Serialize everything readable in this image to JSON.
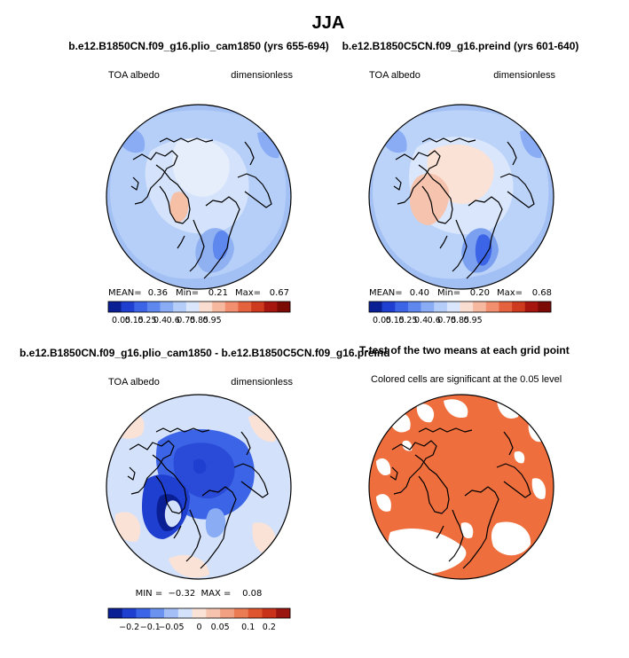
{
  "chart_data": {
    "figure_title": "JJA",
    "panels": [
      {
        "type": "map",
        "title": "b.e12.B1850CN.f09_g16.plio_cam1850 (yrs 655-694)",
        "left_label": "TOA albedo",
        "right_label": "dimensionless",
        "stats": {
          "mean_label": "MEAN=",
          "mean": "0.36",
          "min_label": "Min=",
          "min": "0.21",
          "max_label": "Max=",
          "max": "0.67"
        },
        "colorbar_ticks": [
          "0.05",
          "0.15",
          "0.25",
          "0.4",
          "0.6",
          "0.75",
          "0.85",
          "0.95"
        ]
      },
      {
        "type": "map",
        "title": "b.e12.B1850C5CN.f09_g16.preind (yrs 601-640)",
        "left_label": "TOA albedo",
        "right_label": "dimensionless",
        "stats": {
          "mean_label": "MEAN=",
          "mean": "0.40",
          "min_label": "Min=",
          "min": "0.20",
          "max_label": "Max=",
          "max": "0.68"
        },
        "colorbar_ticks": [
          "0.05",
          "0.15",
          "0.25",
          "0.4",
          "0.6",
          "0.75",
          "0.85",
          "0.95"
        ]
      },
      {
        "type": "map",
        "title": "b.e12.B1850CN.f09_g16.plio_cam1850 - b.e12.B1850C5CN.f09_g16.preind",
        "left_label": "TOA albedo",
        "right_label": "dimensionless",
        "stats_text": "MIN =  −0.32  MAX =    0.08",
        "colorbar_ticks": [
          "−0.2",
          "−0.1",
          "−0.05",
          "0",
          "0.05",
          "0.1",
          "0.2"
        ]
      },
      {
        "type": "map",
        "title": "T-test of the two means at each grid point",
        "subtitle": "Colored cells are significant at the 0.05 level"
      }
    ],
    "colorbar_abs": [
      "#0a1f94",
      "#1f3fd0",
      "#3c64e6",
      "#5f88ee",
      "#89acf5",
      "#b5cdf9",
      "#dae6fb",
      "#f9ddd0",
      "#f6b89f",
      "#f18f6e",
      "#e5623f",
      "#cd3a1e",
      "#a6160e",
      "#7c0b06"
    ],
    "colorbar_diff": [
      "#0a1f94",
      "#1f3fd0",
      "#3c64e6",
      "#6c92ef",
      "#a3bff6",
      "#d3e1fa",
      "#fae2d6",
      "#f6c4ae",
      "#f1a181",
      "#ea7b53",
      "#de5530",
      "#c8321a",
      "#9a1510"
    ],
    "ttest_color": "#ee6f3d",
    "coast_color": "#000000"
  }
}
